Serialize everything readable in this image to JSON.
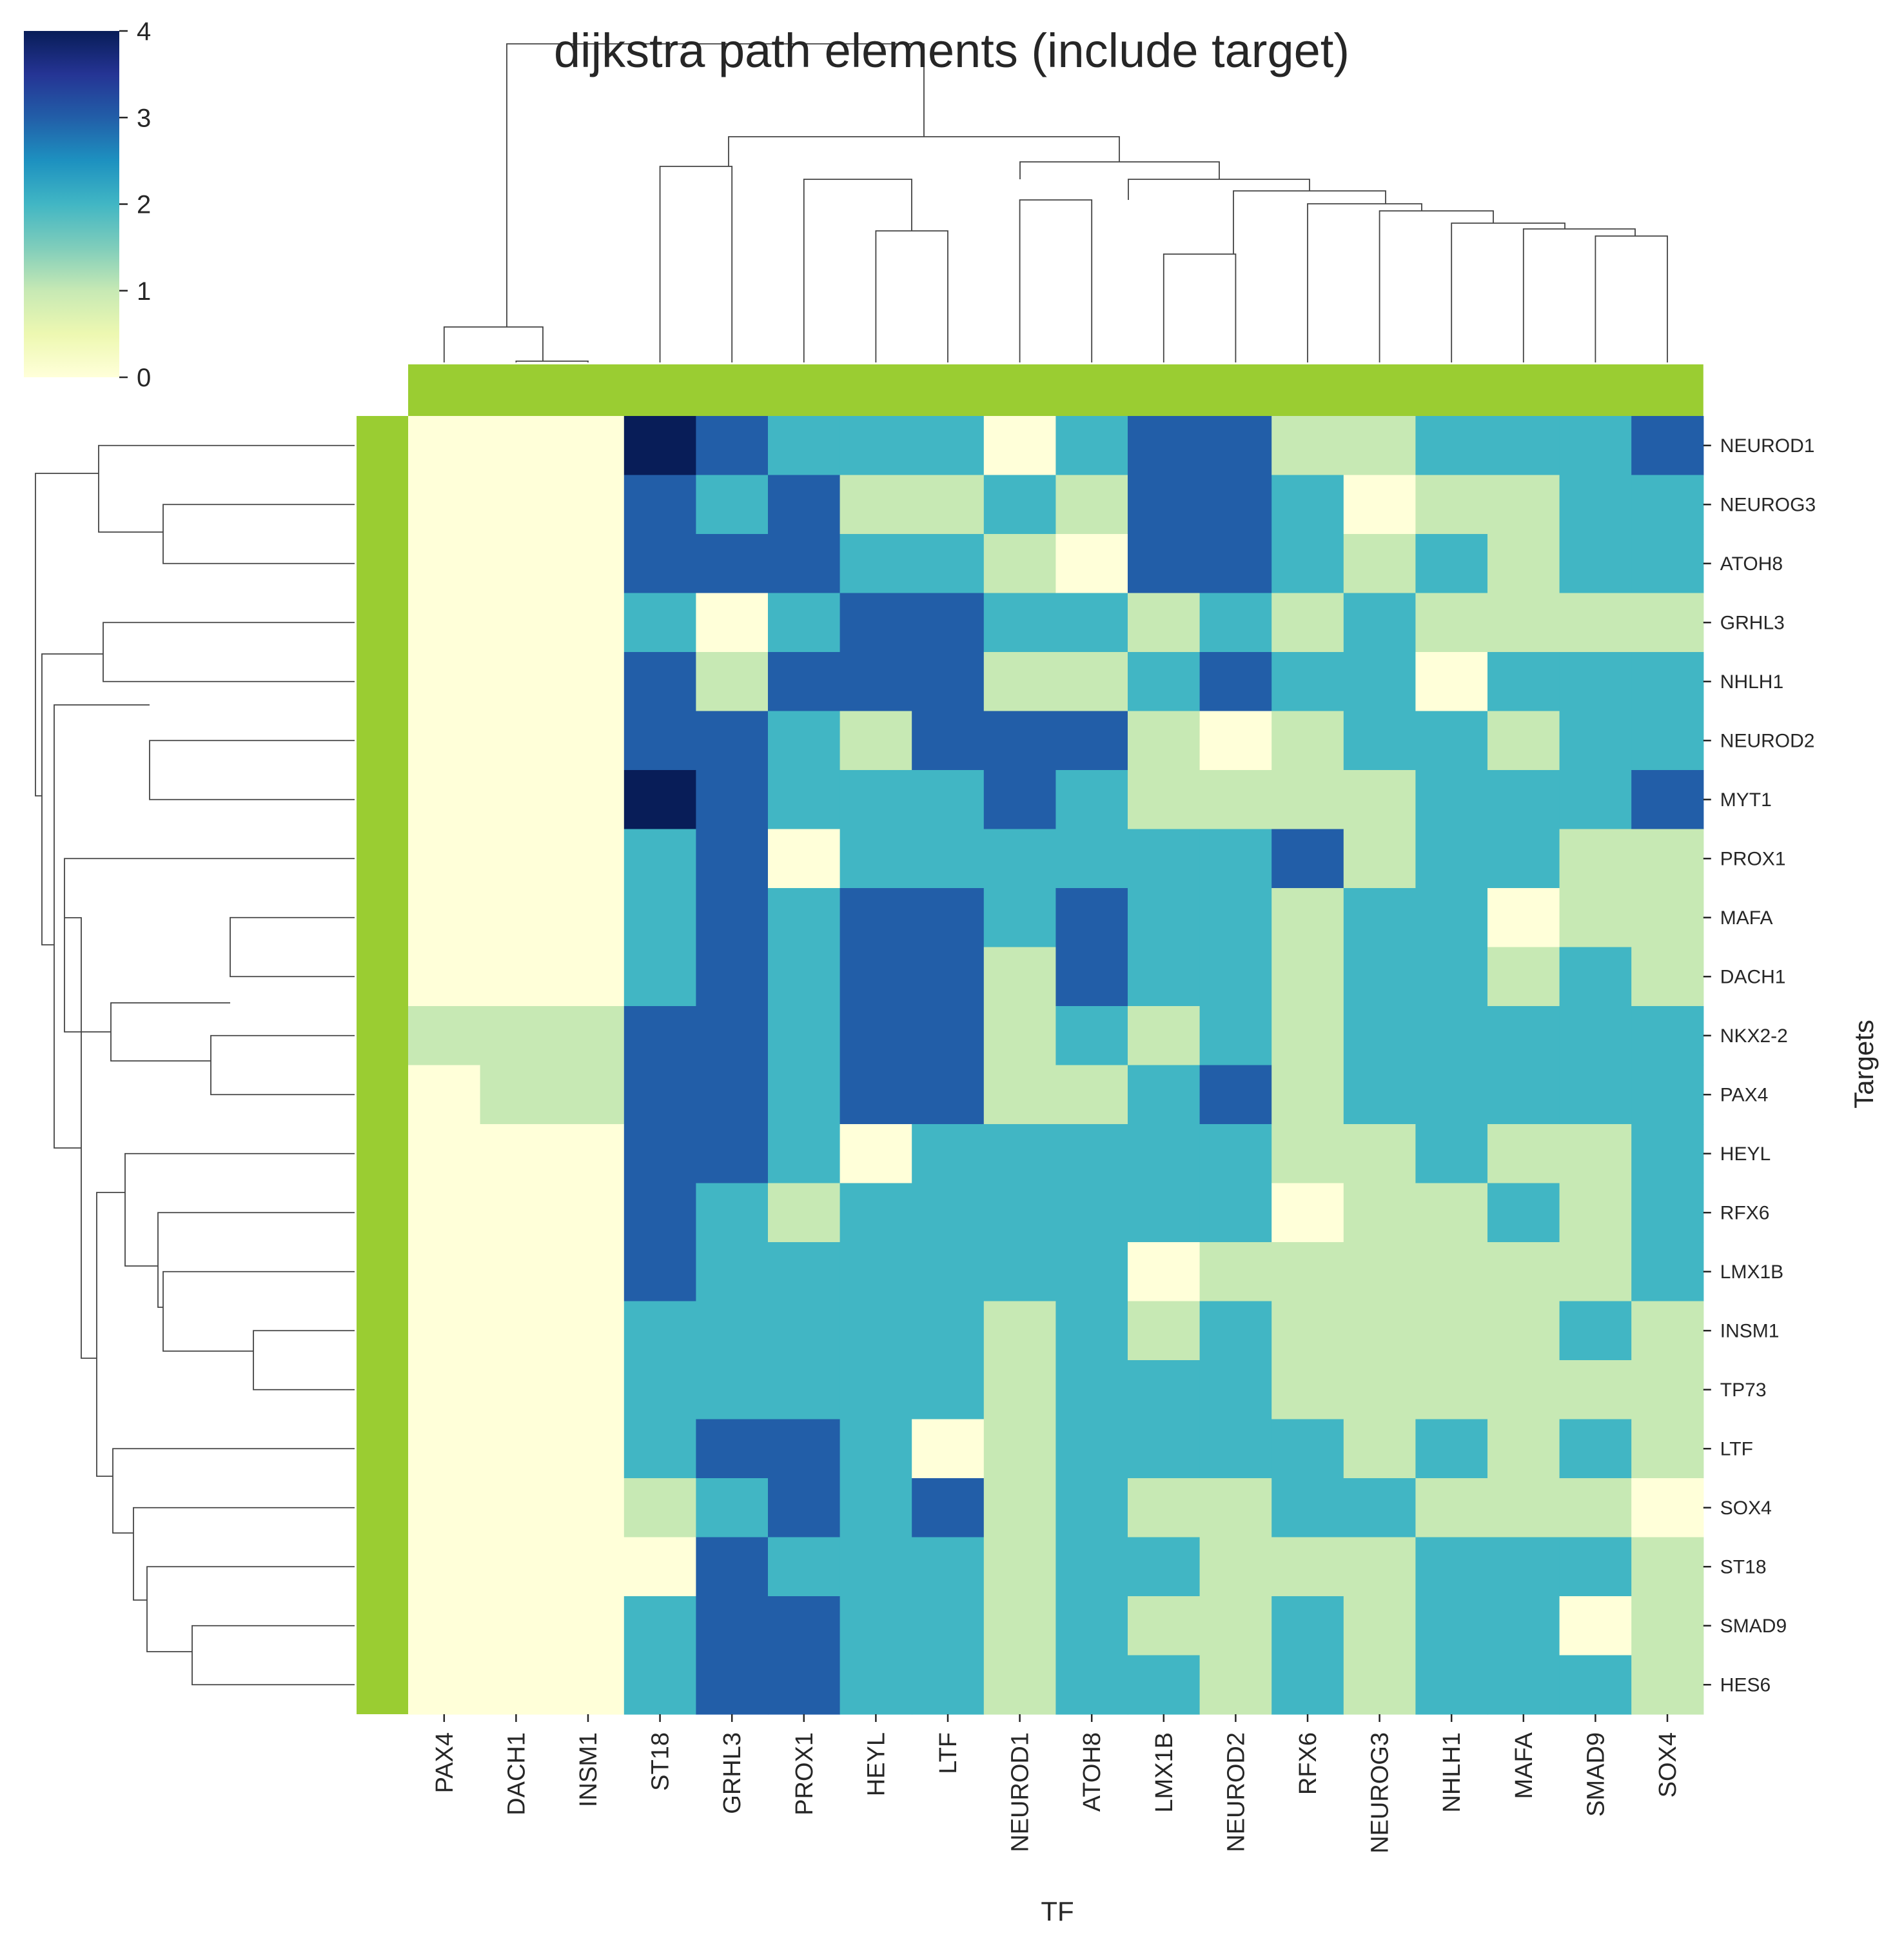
{
  "chart_data": {
    "type": "heatmap",
    "title": "dijkstra path elements (include target)",
    "xlabel": "TF",
    "ylabel": "Targets",
    "columns": [
      "PAX4",
      "DACH1",
      "INSM1",
      "ST18",
      "GRHL3",
      "PROX1",
      "HEYL",
      "LTF",
      "NEUROD1",
      "ATOH8",
      "LMX1B",
      "NEUROD2",
      "RFX6",
      "NEUROG3",
      "NHLH1",
      "MAFA",
      "SMAD9",
      "SOX4"
    ],
    "rows": [
      "NEUROD1",
      "NEUROG3",
      "ATOH8",
      "GRHL3",
      "NHLH1",
      "NEUROD2",
      "MYT1",
      "PROX1",
      "MAFA",
      "DACH1",
      "NKX2-2",
      "PAX4",
      "HEYL",
      "RFX6",
      "LMX1B",
      "INSM1",
      "TP73",
      "LTF",
      "SOX4",
      "ST18",
      "SMAD9",
      "HES6"
    ],
    "values": [
      [
        0,
        0,
        0,
        4,
        3,
        2,
        2,
        2,
        0,
        2,
        3,
        3,
        1,
        1,
        2,
        2,
        2,
        3
      ],
      [
        0,
        0,
        0,
        3,
        2,
        3,
        1,
        1,
        2,
        1,
        3,
        3,
        2,
        0,
        1,
        1,
        2,
        2
      ],
      [
        0,
        0,
        0,
        3,
        3,
        3,
        2,
        2,
        1,
        0,
        3,
        3,
        2,
        1,
        2,
        1,
        2,
        2
      ],
      [
        0,
        0,
        0,
        2,
        0,
        2,
        3,
        3,
        2,
        2,
        1,
        2,
        1,
        2,
        1,
        1,
        1,
        1
      ],
      [
        0,
        0,
        0,
        3,
        1,
        3,
        3,
        3,
        1,
        1,
        2,
        3,
        2,
        2,
        0,
        2,
        2,
        2
      ],
      [
        0,
        0,
        0,
        3,
        3,
        2,
        1,
        3,
        3,
        3,
        1,
        0,
        1,
        2,
        2,
        1,
        2,
        2
      ],
      [
        0,
        0,
        0,
        4,
        3,
        2,
        2,
        2,
        3,
        2,
        1,
        1,
        1,
        1,
        2,
        2,
        2,
        3
      ],
      [
        0,
        0,
        0,
        2,
        3,
        0,
        2,
        2,
        2,
        2,
        2,
        2,
        3,
        1,
        2,
        2,
        1,
        1
      ],
      [
        0,
        0,
        0,
        2,
        3,
        2,
        3,
        3,
        2,
        3,
        2,
        2,
        1,
        2,
        2,
        0,
        1,
        1
      ],
      [
        0,
        0,
        0,
        2,
        3,
        2,
        3,
        3,
        1,
        3,
        2,
        2,
        1,
        2,
        2,
        1,
        2,
        1
      ],
      [
        1,
        1,
        1,
        3,
        3,
        2,
        3,
        3,
        1,
        2,
        1,
        2,
        1,
        2,
        2,
        2,
        2,
        2
      ],
      [
        0,
        1,
        1,
        3,
        3,
        2,
        3,
        3,
        1,
        1,
        2,
        3,
        1,
        2,
        2,
        2,
        2,
        2
      ],
      [
        0,
        0,
        0,
        3,
        3,
        2,
        0,
        2,
        2,
        2,
        2,
        2,
        1,
        1,
        2,
        1,
        1,
        2
      ],
      [
        0,
        0,
        0,
        3,
        2,
        1,
        2,
        2,
        2,
        2,
        2,
        2,
        0,
        1,
        1,
        2,
        1,
        2
      ],
      [
        0,
        0,
        0,
        3,
        2,
        2,
        2,
        2,
        2,
        2,
        0,
        1,
        1,
        1,
        1,
        1,
        1,
        2
      ],
      [
        0,
        0,
        0,
        2,
        2,
        2,
        2,
        2,
        1,
        2,
        1,
        2,
        1,
        1,
        1,
        1,
        2,
        1
      ],
      [
        0,
        0,
        0,
        2,
        2,
        2,
        2,
        2,
        1,
        2,
        2,
        2,
        1,
        1,
        1,
        1,
        1,
        1
      ],
      [
        0,
        0,
        0,
        2,
        3,
        3,
        2,
        0,
        1,
        2,
        2,
        2,
        2,
        1,
        2,
        1,
        2,
        1
      ],
      [
        0,
        0,
        0,
        1,
        2,
        3,
        2,
        3,
        1,
        2,
        1,
        1,
        2,
        2,
        1,
        1,
        1,
        0
      ],
      [
        0,
        0,
        0,
        0,
        3,
        2,
        2,
        2,
        1,
        2,
        2,
        1,
        1,
        1,
        2,
        2,
        2,
        1
      ],
      [
        0,
        0,
        0,
        2,
        3,
        3,
        2,
        2,
        1,
        2,
        1,
        1,
        2,
        1,
        2,
        2,
        0,
        1
      ],
      [
        0,
        0,
        0,
        2,
        3,
        3,
        2,
        2,
        1,
        2,
        2,
        1,
        2,
        1,
        2,
        2,
        2,
        1
      ]
    ],
    "colorbar": {
      "min": 0,
      "max": 4,
      "ticks": [
        "0",
        "1",
        "2",
        "3",
        "4"
      ],
      "colormap": "YlGnBu"
    },
    "colors": {
      "zero": "#ffffd9",
      "one": "#c7e9b4",
      "two": "#41b6c4",
      "three": "#225ea8",
      "four": "#081d58",
      "annotation_bar": "#9acd32"
    },
    "dendrograms": {
      "columns": true,
      "rows": true
    }
  }
}
